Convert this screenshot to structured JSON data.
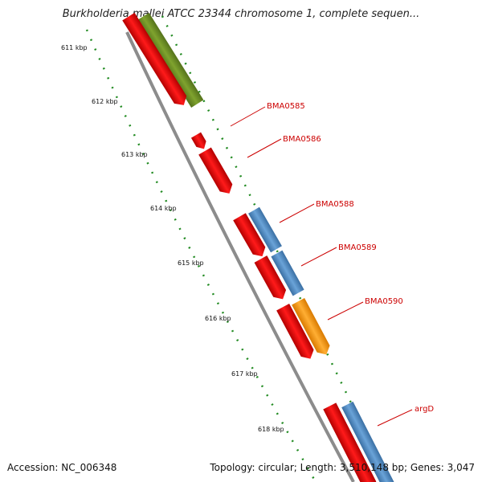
{
  "title": "Burkholderia mallei ATCC 23344 chromosome 1, complete sequen...",
  "footer": {
    "accession": "Accession: NC_006348",
    "summary": "Topology: circular; Length: 3,510,148 bp; Genes: 3,047"
  },
  "scale_labels": [
    "611 kbp",
    "612 kbp",
    "613 kbp",
    "614 kbp",
    "615 kbp",
    "616 kbp",
    "617 kbp",
    "618 kbp"
  ],
  "gene_labels": [
    "BMA0585",
    "BMA0586",
    "BMA0588",
    "BMA0589",
    "BMA0590",
    "argD"
  ],
  "colors": {
    "cds": "#ff0000",
    "blue_feature": "#4f8cc9",
    "orange_feature": "#ff9900",
    "green_feature": "#6b8e23",
    "backbone": "#808080",
    "tick": "#228b22",
    "label": "#cc0000"
  }
}
